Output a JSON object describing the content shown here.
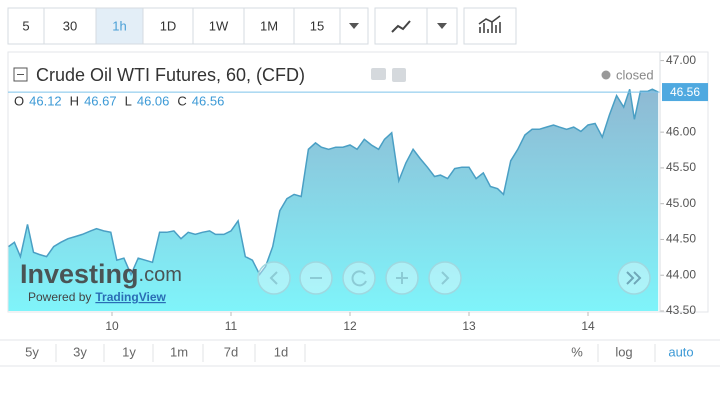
{
  "chart_data": {
    "type": "area",
    "title": "Crude Oil WTI Futures, 60, (CFD)",
    "status": "closed",
    "ohlc": [
      {
        "label": "O",
        "value": 46.12
      },
      {
        "label": "H",
        "value": 46.67
      },
      {
        "label": "L",
        "value": 46.06
      },
      {
        "label": "C",
        "value": 46.56
      }
    ],
    "last_price": 46.56,
    "color": "#4a9fc4",
    "x": [
      9.13,
      9.18,
      9.23,
      9.29,
      9.34,
      9.39,
      9.45,
      9.51,
      9.57,
      9.63,
      9.69,
      9.75,
      9.82,
      9.87,
      9.93,
      9.99,
      10.04,
      10.1,
      10.16,
      10.22,
      10.28,
      10.34,
      10.4,
      10.46,
      10.52,
      10.58,
      10.64,
      10.7,
      10.76,
      10.82,
      10.87,
      10.94,
      11.0,
      11.06,
      11.12,
      11.18,
      11.24,
      11.29,
      11.35,
      11.41,
      11.47,
      11.53,
      11.59,
      11.65,
      11.71,
      11.76,
      11.82,
      11.88,
      11.94,
      12.0,
      12.06,
      12.12,
      12.18,
      12.24,
      12.29,
      12.35,
      12.41,
      12.47,
      12.53,
      12.59,
      12.65,
      12.71,
      12.76,
      12.82,
      12.88,
      12.94,
      13.0,
      13.06,
      13.12,
      13.18,
      13.24,
      13.29,
      13.35,
      13.41,
      13.47,
      13.53,
      13.59,
      13.65,
      13.71,
      13.76,
      13.82,
      13.88,
      13.94,
      14.0,
      14.06,
      14.12,
      14.18,
      14.24,
      14.3,
      14.35,
      14.39,
      14.44,
      14.5,
      14.54,
      14.59
    ],
    "values": [
      44.4,
      44.46,
      44.26,
      44.71,
      44.32,
      44.29,
      44.26,
      44.4,
      44.46,
      44.51,
      44.54,
      44.57,
      44.62,
      44.65,
      44.62,
      44.6,
      44.21,
      44.24,
      44.01,
      44.24,
      44.21,
      44.18,
      44.6,
      44.6,
      44.62,
      44.51,
      44.6,
      44.57,
      44.6,
      44.62,
      44.57,
      44.57,
      44.62,
      44.76,
      44.26,
      44.21,
      44.01,
      44.12,
      44.4,
      44.9,
      45.07,
      45.13,
      45.1,
      45.76,
      45.85,
      45.79,
      45.76,
      45.79,
      45.79,
      45.82,
      45.76,
      45.9,
      45.82,
      45.76,
      45.9,
      45.99,
      45.32,
      45.57,
      45.76,
      45.63,
      45.51,
      45.38,
      45.4,
      45.35,
      45.49,
      45.51,
      45.51,
      45.35,
      45.43,
      45.24,
      45.21,
      45.13,
      45.6,
      45.76,
      45.96,
      46.04,
      46.04,
      46.07,
      46.1,
      46.07,
      46.04,
      46.07,
      46.01,
      46.1,
      46.12,
      45.93,
      46.24,
      46.51,
      46.35,
      46.6,
      46.18,
      46.57,
      46.57,
      46.6,
      46.56
    ],
    "xlim": [
      9.126,
      14.605
    ],
    "xticks": [
      10,
      11,
      12,
      13,
      14
    ],
    "ylim": [
      43.5,
      47.12
    ],
    "yticks": [
      {
        "value": 43.5,
        "label": "43.50"
      },
      {
        "value": 44,
        "label": "44.00"
      },
      {
        "value": 44.5,
        "label": "44.50"
      },
      {
        "value": 45,
        "label": "45.00"
      },
      {
        "value": 45.5,
        "label": "45.50"
      },
      {
        "value": 46,
        "label": "46.00"
      },
      {
        "value": 47,
        "label": "47.00"
      }
    ],
    "y_axis_side": "right",
    "grid": false
  },
  "toolbar": {
    "intervals": [
      "5",
      "30",
      "1h",
      "1D",
      "1W",
      "1M",
      "15"
    ],
    "active": "1h"
  },
  "watermark": {
    "brand": "Investing",
    "suffix": ".com",
    "powered": "Powered by",
    "provider": "TradingView"
  },
  "range_buttons": [
    "5y",
    "3y",
    "1y",
    "1m",
    "7d",
    "1d"
  ],
  "scale_buttons": [
    "%",
    "log",
    "auto"
  ]
}
